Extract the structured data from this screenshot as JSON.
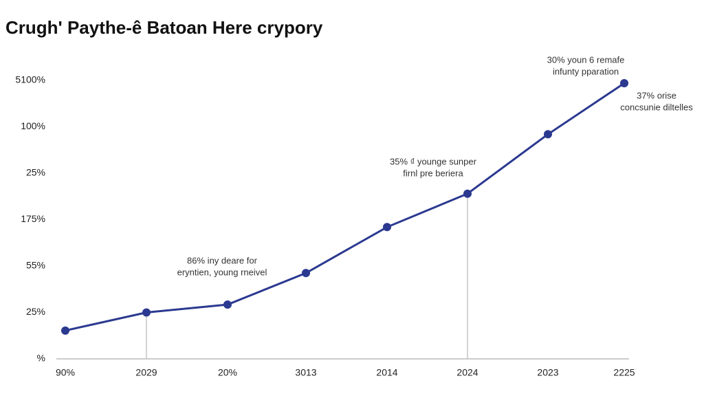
{
  "chart_data": {
    "type": "line",
    "title": "Crugh' Paythe-ê Batoan Here crypory",
    "categories": [
      "90%",
      "2029",
      "20%",
      "3013",
      "2014",
      "2024",
      "2023",
      "2225"
    ],
    "series": [
      {
        "color": "#2b3990",
        "values": [
          0.61,
          1.0,
          1.17,
          1.85,
          2.84,
          3.56,
          4.84,
          5.94
        ]
      }
    ],
    "ylim": [
      0,
      6
    ],
    "yticks": [
      {
        "value": 0,
        "label": "%"
      },
      {
        "value": 1,
        "label": "25%"
      },
      {
        "value": 2,
        "label": "55%"
      },
      {
        "value": 3,
        "label": "175%"
      },
      {
        "value": 4,
        "label": "25%"
      },
      {
        "value": 5,
        "label": "100%"
      },
      {
        "value": 6,
        "label": "5100%"
      }
    ],
    "annotations": [
      [
        "86% iny deare for",
        "eryntien, young rneivel"
      ],
      [
        "35% ₫ younge sunper",
        "firnl pre beriera"
      ],
      [
        "30% youn 6 remafe",
        "infunty pparation"
      ],
      [
        "37% orise",
        "concsunie diltelles"
      ]
    ]
  }
}
